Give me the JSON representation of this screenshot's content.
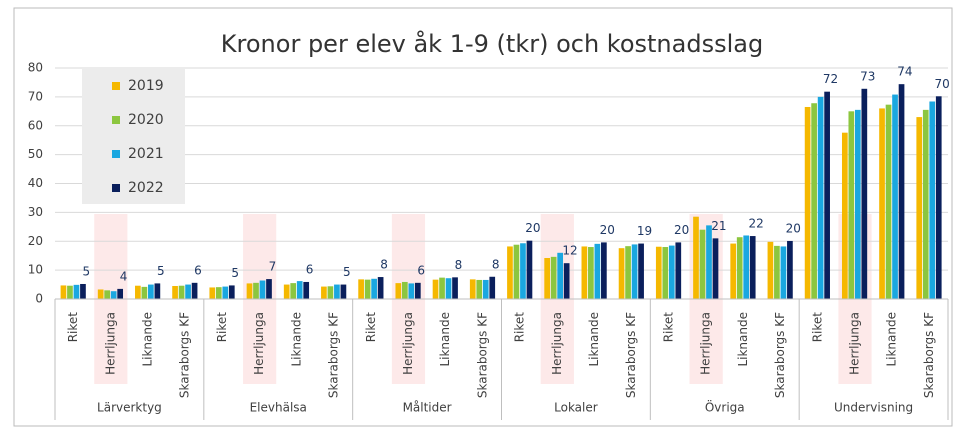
{
  "chart_data": {
    "type": "bar",
    "title": "Kronor per elev åk 1-9 (tkr) och kostnadsslag",
    "groups": [
      {
        "name": "Lärverktyg",
        "categories": [
          "Riket",
          "Herrljunga",
          "Liknande",
          "Skaraborgs KF"
        ]
      },
      {
        "name": "Elevhälsa",
        "categories": [
          "Riket",
          "Herrljunga",
          "Liknande",
          "Skaraborgs KF"
        ]
      },
      {
        "name": "Måltider",
        "categories": [
          "Riket",
          "Herrljunga",
          "Liknande",
          "Skaraborgs KF"
        ]
      },
      {
        "name": "Lokaler",
        "categories": [
          "Riket",
          "Herrljunga",
          "Liknande",
          "Skaraborgs KF"
        ]
      },
      {
        "name": "Övriga",
        "categories": [
          "Riket",
          "Herrljunga",
          "Liknande",
          "Skaraborgs KF"
        ]
      },
      {
        "name": "Undervisning",
        "categories": [
          "Riket",
          "Herrljunga",
          "Liknande",
          "Skaraborgs KF"
        ]
      }
    ],
    "series": [
      {
        "name": "2019",
        "color": "#f5b800",
        "values": [
          4.7,
          3.3,
          4.6,
          4.5,
          4.0,
          5.4,
          5.0,
          4.3,
          6.8,
          5.5,
          6.7,
          6.8,
          18.2,
          14.2,
          18.2,
          17.6,
          18.1,
          28.5,
          19.2,
          19.8,
          66.5,
          57.6,
          66.0,
          63.0
        ]
      },
      {
        "name": "2020",
        "color": "#8cc63f",
        "values": [
          4.6,
          3.0,
          4.2,
          4.6,
          4.1,
          5.6,
          5.5,
          4.4,
          6.7,
          5.9,
          7.4,
          6.6,
          18.8,
          14.6,
          18.0,
          18.3,
          18.0,
          24.0,
          21.4,
          18.4,
          67.8,
          65.0,
          67.3,
          65.5
        ]
      },
      {
        "name": "2021",
        "color": "#1aa7e0",
        "values": [
          4.9,
          2.7,
          5.0,
          5.0,
          4.3,
          6.4,
          6.2,
          5.0,
          7.0,
          5.4,
          7.2,
          6.6,
          19.3,
          16.0,
          19.1,
          18.9,
          18.5,
          25.5,
          22.0,
          18.2,
          70.0,
          65.5,
          70.8,
          68.4
        ]
      },
      {
        "name": "2022",
        "color": "#0a1f5c",
        "values": [
          5.2,
          3.5,
          5.4,
          5.6,
          4.7,
          6.9,
          5.9,
          5.0,
          7.6,
          5.6,
          7.5,
          7.7,
          20.2,
          12.4,
          19.6,
          19.2,
          19.6,
          21.0,
          21.8,
          20.1,
          71.8,
          72.8,
          74.4,
          70.2
        ],
        "value_labels": [
          "5",
          "4",
          "5",
          "6",
          "5",
          "7",
          "6",
          "5",
          "8",
          "6",
          "8",
          "8",
          "20",
          "12",
          "20",
          "19",
          "20",
          "21",
          "22",
          "20",
          "72",
          "73",
          "74",
          "70"
        ]
      }
    ],
    "ylim": [
      0,
      80
    ],
    "yticks": [
      0,
      10,
      20,
      30,
      40,
      50,
      60,
      70,
      80
    ],
    "grid": true,
    "legend": "top-left"
  }
}
